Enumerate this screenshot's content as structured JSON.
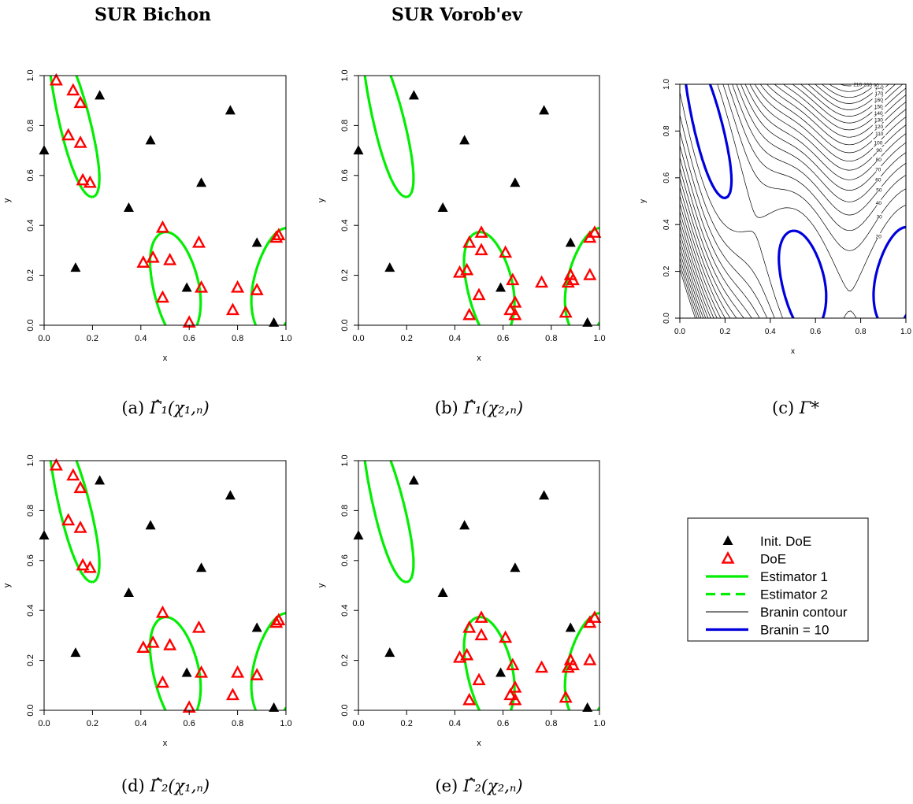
{
  "column_titles": [
    "SUR Bichon",
    "SUR Vorob'ev"
  ],
  "axis": {
    "xlabel": "x",
    "ylabel": "y",
    "ticks": [
      "0.0",
      "0.2",
      "0.4",
      "0.6",
      "0.8",
      "1.0"
    ]
  },
  "colors": {
    "init_doe": "#000000",
    "doe": "#ff0000",
    "estimator": "#00ee00",
    "contour": "#000000",
    "branin10": "#0000dd"
  },
  "legend": {
    "placement": "bottom-right",
    "items": [
      {
        "label": "Init. DoE",
        "symbol": "filled-triangle"
      },
      {
        "label": "DoE",
        "symbol": "open-red-triangle"
      },
      {
        "label": "Estimator 1",
        "symbol": "solid-green-line"
      },
      {
        "label": "Estimator 2",
        "symbol": "dashed-green-line"
      },
      {
        "label": "Branin contour",
        "symbol": "thin-black-line"
      },
      {
        "label": "Branin = 10",
        "symbol": "thick-blue-line"
      }
    ]
  },
  "chart_data": [
    {
      "id": "a",
      "type": "scatter",
      "caption_label": "(a)",
      "caption_math": "Γ̂₁(χ₁,ₙ)",
      "xlim": [
        0,
        1
      ],
      "ylim": [
        0,
        1
      ],
      "init_doe": [
        [
          0.0,
          0.7
        ],
        [
          0.13,
          0.23
        ],
        [
          0.23,
          0.92
        ],
        [
          0.35,
          0.47
        ],
        [
          0.44,
          0.74
        ],
        [
          0.59,
          0.15
        ],
        [
          0.65,
          0.57
        ],
        [
          0.77,
          0.86
        ],
        [
          0.88,
          0.33
        ],
        [
          0.95,
          0.01
        ]
      ],
      "doe": [
        [
          0.05,
          0.98
        ],
        [
          0.12,
          0.94
        ],
        [
          0.15,
          0.89
        ],
        [
          0.1,
          0.76
        ],
        [
          0.15,
          0.73
        ],
        [
          0.16,
          0.58
        ],
        [
          0.19,
          0.57
        ],
        [
          0.41,
          0.25
        ],
        [
          0.45,
          0.27
        ],
        [
          0.49,
          0.39
        ],
        [
          0.52,
          0.26
        ],
        [
          0.49,
          0.11
        ],
        [
          0.64,
          0.33
        ],
        [
          0.65,
          0.15
        ],
        [
          0.6,
          0.01
        ],
        [
          0.8,
          0.15
        ],
        [
          0.78,
          0.06
        ],
        [
          0.88,
          0.14
        ],
        [
          0.96,
          0.35
        ],
        [
          0.97,
          0.36
        ]
      ],
      "estimator": "1"
    },
    {
      "id": "b",
      "type": "scatter",
      "caption_label": "(b)",
      "caption_math": "Γ̂₁(χ₂,ₙ)",
      "xlim": [
        0,
        1
      ],
      "ylim": [
        0,
        1
      ],
      "init_doe": [
        [
          0.0,
          0.7
        ],
        [
          0.13,
          0.23
        ],
        [
          0.23,
          0.92
        ],
        [
          0.35,
          0.47
        ],
        [
          0.44,
          0.74
        ],
        [
          0.59,
          0.15
        ],
        [
          0.65,
          0.57
        ],
        [
          0.77,
          0.86
        ],
        [
          0.88,
          0.33
        ],
        [
          0.95,
          0.01
        ]
      ],
      "doe": [
        [
          0.42,
          0.21
        ],
        [
          0.45,
          0.22
        ],
        [
          0.46,
          0.04
        ],
        [
          0.46,
          0.33
        ],
        [
          0.51,
          0.37
        ],
        [
          0.51,
          0.3
        ],
        [
          0.5,
          0.12
        ],
        [
          0.61,
          0.29
        ],
        [
          0.64,
          0.18
        ],
        [
          0.63,
          0.06
        ],
        [
          0.65,
          0.09
        ],
        [
          0.65,
          0.04
        ],
        [
          0.76,
          0.17
        ],
        [
          0.87,
          0.17
        ],
        [
          0.88,
          0.2
        ],
        [
          0.89,
          0.18
        ],
        [
          0.86,
          0.05
        ],
        [
          0.96,
          0.35
        ],
        [
          0.98,
          0.37
        ],
        [
          0.96,
          0.2
        ]
      ],
      "estimator": "1"
    },
    {
      "id": "c",
      "type": "contour",
      "caption_label": "(c)",
      "caption_math": "Γ*",
      "xlim": [
        0,
        1
      ],
      "ylim": [
        0,
        1
      ],
      "contour_levels": [
        10,
        20,
        30,
        40,
        50,
        60,
        70,
        80,
        90,
        100,
        110,
        120,
        130,
        140,
        150,
        160,
        170,
        180,
        190,
        200,
        210
      ],
      "level_labels": [
        "10",
        "20",
        "30",
        "40",
        "50",
        "60",
        "70",
        "80",
        "90",
        "100",
        "110",
        "120",
        "130",
        "140",
        "150",
        "160",
        "170",
        "180",
        "190",
        "200",
        "210"
      ],
      "highlight_level": 10
    },
    {
      "id": "d",
      "type": "scatter",
      "caption_label": "(d)",
      "caption_math": "Γ̂₂(χ₁,ₙ)",
      "xlim": [
        0,
        1
      ],
      "ylim": [
        0,
        1
      ],
      "init_doe": [
        [
          0.0,
          0.7
        ],
        [
          0.13,
          0.23
        ],
        [
          0.23,
          0.92
        ],
        [
          0.35,
          0.47
        ],
        [
          0.44,
          0.74
        ],
        [
          0.59,
          0.15
        ],
        [
          0.65,
          0.57
        ],
        [
          0.77,
          0.86
        ],
        [
          0.88,
          0.33
        ],
        [
          0.95,
          0.01
        ]
      ],
      "doe": [
        [
          0.05,
          0.98
        ],
        [
          0.12,
          0.94
        ],
        [
          0.15,
          0.89
        ],
        [
          0.1,
          0.76
        ],
        [
          0.15,
          0.73
        ],
        [
          0.16,
          0.58
        ],
        [
          0.19,
          0.57
        ],
        [
          0.41,
          0.25
        ],
        [
          0.45,
          0.27
        ],
        [
          0.49,
          0.39
        ],
        [
          0.52,
          0.26
        ],
        [
          0.49,
          0.11
        ],
        [
          0.64,
          0.33
        ],
        [
          0.65,
          0.15
        ],
        [
          0.6,
          0.01
        ],
        [
          0.8,
          0.15
        ],
        [
          0.78,
          0.06
        ],
        [
          0.88,
          0.14
        ],
        [
          0.96,
          0.35
        ],
        [
          0.97,
          0.36
        ]
      ],
      "estimator": "2"
    },
    {
      "id": "e",
      "type": "scatter",
      "caption_label": "(e)",
      "caption_math": "Γ̂₂(χ₂,ₙ)",
      "xlim": [
        0,
        1
      ],
      "ylim": [
        0,
        1
      ],
      "init_doe": [
        [
          0.0,
          0.7
        ],
        [
          0.13,
          0.23
        ],
        [
          0.23,
          0.92
        ],
        [
          0.35,
          0.47
        ],
        [
          0.44,
          0.74
        ],
        [
          0.59,
          0.15
        ],
        [
          0.65,
          0.57
        ],
        [
          0.77,
          0.86
        ],
        [
          0.88,
          0.33
        ],
        [
          0.95,
          0.01
        ]
      ],
      "doe": [
        [
          0.42,
          0.21
        ],
        [
          0.45,
          0.22
        ],
        [
          0.46,
          0.04
        ],
        [
          0.46,
          0.33
        ],
        [
          0.51,
          0.37
        ],
        [
          0.51,
          0.3
        ],
        [
          0.5,
          0.12
        ],
        [
          0.61,
          0.29
        ],
        [
          0.64,
          0.18
        ],
        [
          0.63,
          0.06
        ],
        [
          0.65,
          0.09
        ],
        [
          0.65,
          0.04
        ],
        [
          0.76,
          0.17
        ],
        [
          0.87,
          0.17
        ],
        [
          0.88,
          0.2
        ],
        [
          0.89,
          0.18
        ],
        [
          0.86,
          0.05
        ],
        [
          0.96,
          0.35
        ],
        [
          0.98,
          0.37
        ],
        [
          0.96,
          0.2
        ]
      ],
      "estimator": "2"
    }
  ]
}
